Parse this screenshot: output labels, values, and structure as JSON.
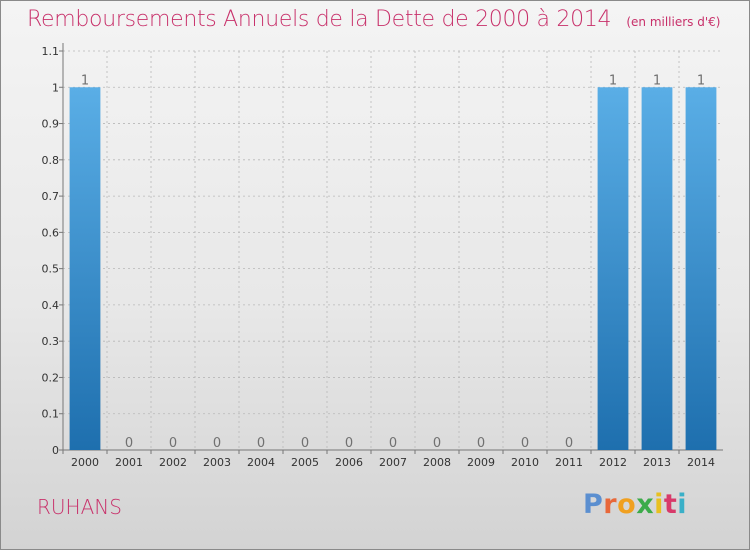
{
  "header": {
    "title": "Remboursements Annuels de la Dette de 2000 à 2014",
    "subtitle": "(en milliers d'€)"
  },
  "footer": {
    "commune": "RUHANS",
    "brand": "Proxiti"
  },
  "colors": {
    "title": "#c8306a",
    "bar_top": "#5aaee6",
    "bar_bottom": "#1e6fae",
    "grid": "#b8b8b8",
    "axis": "#777777",
    "value_label": "#707070",
    "tick_label": "#333333",
    "brand_letters": [
      "#5b8fd0",
      "#e8683a",
      "#f0a020",
      "#3cab4a",
      "#e8c020",
      "#d83a6a",
      "#3ab0c8"
    ]
  },
  "chart_data": {
    "type": "bar",
    "title": "Remboursements Annuels de la Dette de 2000 à 2014",
    "subtitle": "(en milliers d'€)",
    "xlabel": "",
    "ylabel": "",
    "categories": [
      "2000",
      "2001",
      "2002",
      "2003",
      "2004",
      "2005",
      "2006",
      "2007",
      "2008",
      "2009",
      "2010",
      "2011",
      "2012",
      "2013",
      "2014"
    ],
    "values": [
      1,
      0,
      0,
      0,
      0,
      0,
      0,
      0,
      0,
      0,
      0,
      0,
      1,
      1,
      1
    ],
    "value_labels": [
      "1",
      "0",
      "0",
      "0",
      "0",
      "0",
      "0",
      "0",
      "0",
      "0",
      "0",
      "0",
      "1",
      "1",
      "1"
    ],
    "ylim": [
      0,
      1.1
    ],
    "yticks": [
      "0",
      "0.1",
      "0.2",
      "0.3",
      "0.4",
      "0.5",
      "0.6",
      "0.7",
      "0.8",
      "0.9",
      "1",
      "1.1"
    ],
    "ytick_values": [
      0,
      0.1,
      0.2,
      0.3,
      0.4,
      0.5,
      0.6,
      0.7,
      0.8,
      0.9,
      1,
      1.1
    ],
    "grid": true
  }
}
